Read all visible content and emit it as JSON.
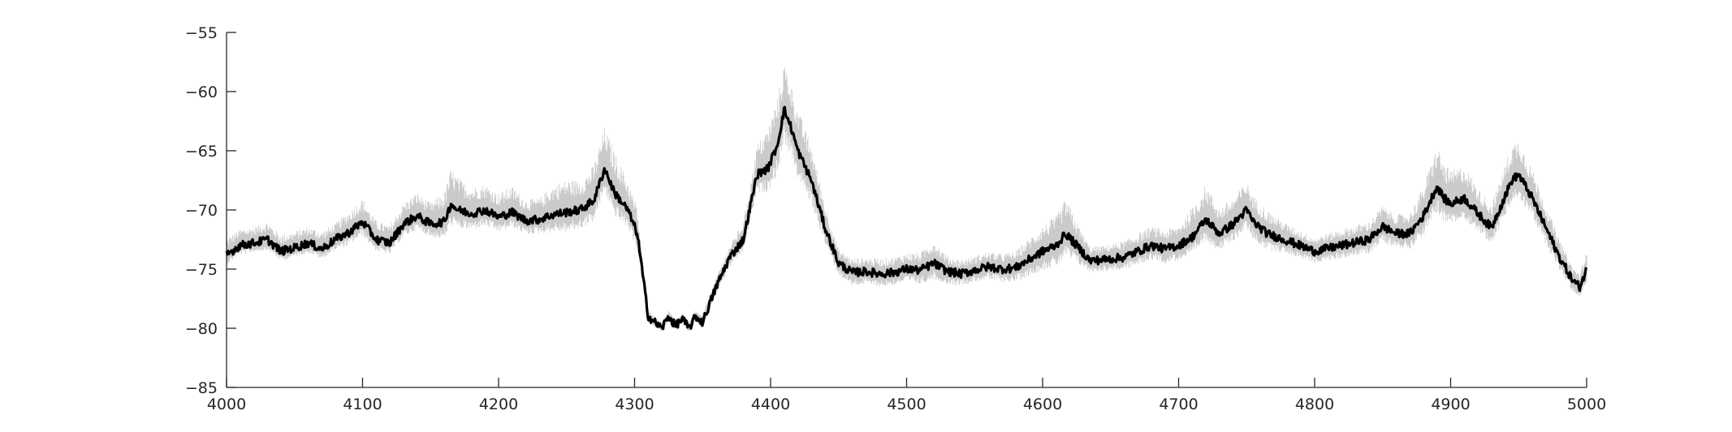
{
  "chart_data": {
    "type": "line",
    "title": "",
    "xlabel": "",
    "ylabel": "",
    "xlim": [
      4000,
      5000
    ],
    "ylim": [
      -85,
      -55
    ],
    "grid": false,
    "legend": "none",
    "x_ticks": [
      4000,
      4100,
      4200,
      4300,
      4400,
      4500,
      4600,
      4700,
      4800,
      4900,
      5000
    ],
    "x_tick_labels": [
      "4000",
      "4100",
      "4200",
      "4300",
      "4400",
      "4500",
      "4600",
      "4700",
      "4800",
      "4900",
      "5000"
    ],
    "y_ticks": [
      -55,
      -60,
      -65,
      -70,
      -75,
      -80,
      -85
    ],
    "y_tick_labels": [
      "−55",
      "−60",
      "−65",
      "−70",
      "−75",
      "−80",
      "−85"
    ],
    "series": [
      {
        "role": "mean",
        "color": "#000000",
        "x": [
          4000,
          4010,
          4020,
          4030,
          4040,
          4050,
          4060,
          4070,
          4080,
          4090,
          4100,
          4110,
          4120,
          4130,
          4140,
          4150,
          4160,
          4165,
          4170,
          4180,
          4190,
          4200,
          4210,
          4220,
          4230,
          4240,
          4250,
          4260,
          4270,
          4278,
          4285,
          4295,
          4302,
          4306,
          4310,
          4315,
          4320,
          4325,
          4330,
          4335,
          4340,
          4345,
          4350,
          4355,
          4360,
          4370,
          4380,
          4390,
          4398,
          4405,
          4410,
          4415,
          4420,
          4430,
          4440,
          4450,
          4460,
          4470,
          4480,
          4490,
          4500,
          4510,
          4520,
          4530,
          4540,
          4550,
          4560,
          4570,
          4580,
          4590,
          4600,
          4610,
          4617,
          4625,
          4635,
          4645,
          4660,
          4680,
          4690,
          4700,
          4710,
          4720,
          4730,
          4740,
          4750,
          4755,
          4765,
          4780,
          4800,
          4820,
          4840,
          4850,
          4860,
          4870,
          4880,
          4890,
          4895,
          4900,
          4910,
          4920,
          4930,
          4945,
          4950,
          4960,
          4970,
          4980,
          4990,
          4995,
          5000
        ],
        "y": [
          -73.8,
          -73.0,
          -72.8,
          -72.5,
          -73.5,
          -73.2,
          -72.8,
          -73.3,
          -72.5,
          -71.9,
          -71.0,
          -72.5,
          -72.8,
          -71.2,
          -70.5,
          -71.2,
          -71.0,
          -69.5,
          -70.0,
          -70.3,
          -70.0,
          -70.6,
          -70.2,
          -70.9,
          -70.8,
          -70.4,
          -70.2,
          -70.0,
          -69.2,
          -66.5,
          -68.5,
          -70.0,
          -72.0,
          -75.5,
          -79.0,
          -79.5,
          -80.0,
          -79.0,
          -79.8,
          -79.2,
          -80.0,
          -79.0,
          -79.5,
          -78.0,
          -76.5,
          -74.0,
          -72.5,
          -67.0,
          -66.5,
          -64.5,
          -61.5,
          -63.0,
          -65.0,
          -67.5,
          -71.5,
          -74.5,
          -75.3,
          -75.2,
          -75.4,
          -75.3,
          -75.0,
          -75.1,
          -74.5,
          -75.2,
          -75.4,
          -75.1,
          -74.8,
          -75.0,
          -74.9,
          -74.2,
          -73.5,
          -73.0,
          -72.0,
          -73.0,
          -74.3,
          -74.2,
          -74.0,
          -73.0,
          -73.3,
          -73.0,
          -72.3,
          -70.8,
          -72.0,
          -71.2,
          -70.0,
          -71.0,
          -72.0,
          -72.6,
          -73.5,
          -73.0,
          -72.5,
          -71.4,
          -72.0,
          -72.0,
          -70.5,
          -68.0,
          -69.0,
          -69.5,
          -69.0,
          -70.3,
          -71.5,
          -67.5,
          -67.0,
          -69.0,
          -71.5,
          -74.0,
          -76.0,
          -76.5,
          -75.0
        ],
        "noise": 0.35
      },
      {
        "role": "spread",
        "color": "#c8c8c8",
        "upper_offset": [
          1.4,
          1.4,
          1.4,
          1.5,
          1.4,
          1.4,
          1.4,
          1.5,
          1.4,
          1.8,
          2.0,
          1.6,
          1.5,
          1.8,
          2.0,
          1.8,
          2.5,
          3.0,
          2.8,
          2.2,
          2.2,
          2.0,
          2.2,
          1.8,
          1.8,
          2.5,
          2.8,
          2.5,
          3.0,
          3.5,
          3.5,
          2.5,
          2.2,
          1.2,
          0.6,
          0.5,
          0.5,
          0.5,
          0.5,
          0.5,
          0.5,
          0.5,
          0.6,
          0.8,
          0.8,
          1.0,
          1.5,
          2.5,
          3.5,
          4.0,
          4.0,
          3.8,
          3.5,
          3.0,
          2.0,
          1.2,
          1.2,
          1.2,
          1.3,
          1.3,
          1.4,
          1.5,
          2.0,
          1.3,
          1.2,
          1.2,
          1.3,
          1.3,
          1.4,
          1.8,
          2.2,
          2.5,
          3.0,
          2.0,
          1.2,
          1.2,
          1.4,
          1.6,
          1.6,
          1.7,
          2.5,
          3.0,
          2.2,
          2.2,
          2.5,
          2.2,
          2.0,
          1.4,
          1.2,
          1.4,
          1.5,
          1.8,
          1.6,
          1.8,
          2.5,
          3.5,
          3.0,
          2.8,
          2.8,
          2.2,
          2.0,
          3.0,
          3.0,
          2.5,
          2.0,
          1.5,
          1.2,
          1.2,
          1.5
        ],
        "lower_offset": [
          0.8,
          0.8,
          0.8,
          0.9,
          0.8,
          0.8,
          0.8,
          0.9,
          0.9,
          1.1,
          1.2,
          1.0,
          1.0,
          1.1,
          1.2,
          1.1,
          1.5,
          1.8,
          1.6,
          1.4,
          1.4,
          1.3,
          1.3,
          1.2,
          1.2,
          1.5,
          1.7,
          1.6,
          1.8,
          2.0,
          2.0,
          1.5,
          1.4,
          0.8,
          0.4,
          0.4,
          0.4,
          0.4,
          0.4,
          0.4,
          0.4,
          0.4,
          0.5,
          0.6,
          0.6,
          0.8,
          1.0,
          1.6,
          2.0,
          2.5,
          2.8,
          2.5,
          2.3,
          2.0,
          1.4,
          1.0,
          1.1,
          1.1,
          1.1,
          1.1,
          1.1,
          1.2,
          1.4,
          1.1,
          1.0,
          1.0,
          1.1,
          1.1,
          1.2,
          1.4,
          1.6,
          1.8,
          2.0,
          1.5,
          1.0,
          1.0,
          1.1,
          1.2,
          1.2,
          1.3,
          1.6,
          1.8,
          1.5,
          1.5,
          1.6,
          1.5,
          1.4,
          1.1,
          1.0,
          1.1,
          1.2,
          1.3,
          1.2,
          1.3,
          1.7,
          2.2,
          2.0,
          1.8,
          1.8,
          1.5,
          1.4,
          2.0,
          2.0,
          1.7,
          1.4,
          1.1,
          1.0,
          1.0,
          1.1
        ]
      }
    ]
  }
}
